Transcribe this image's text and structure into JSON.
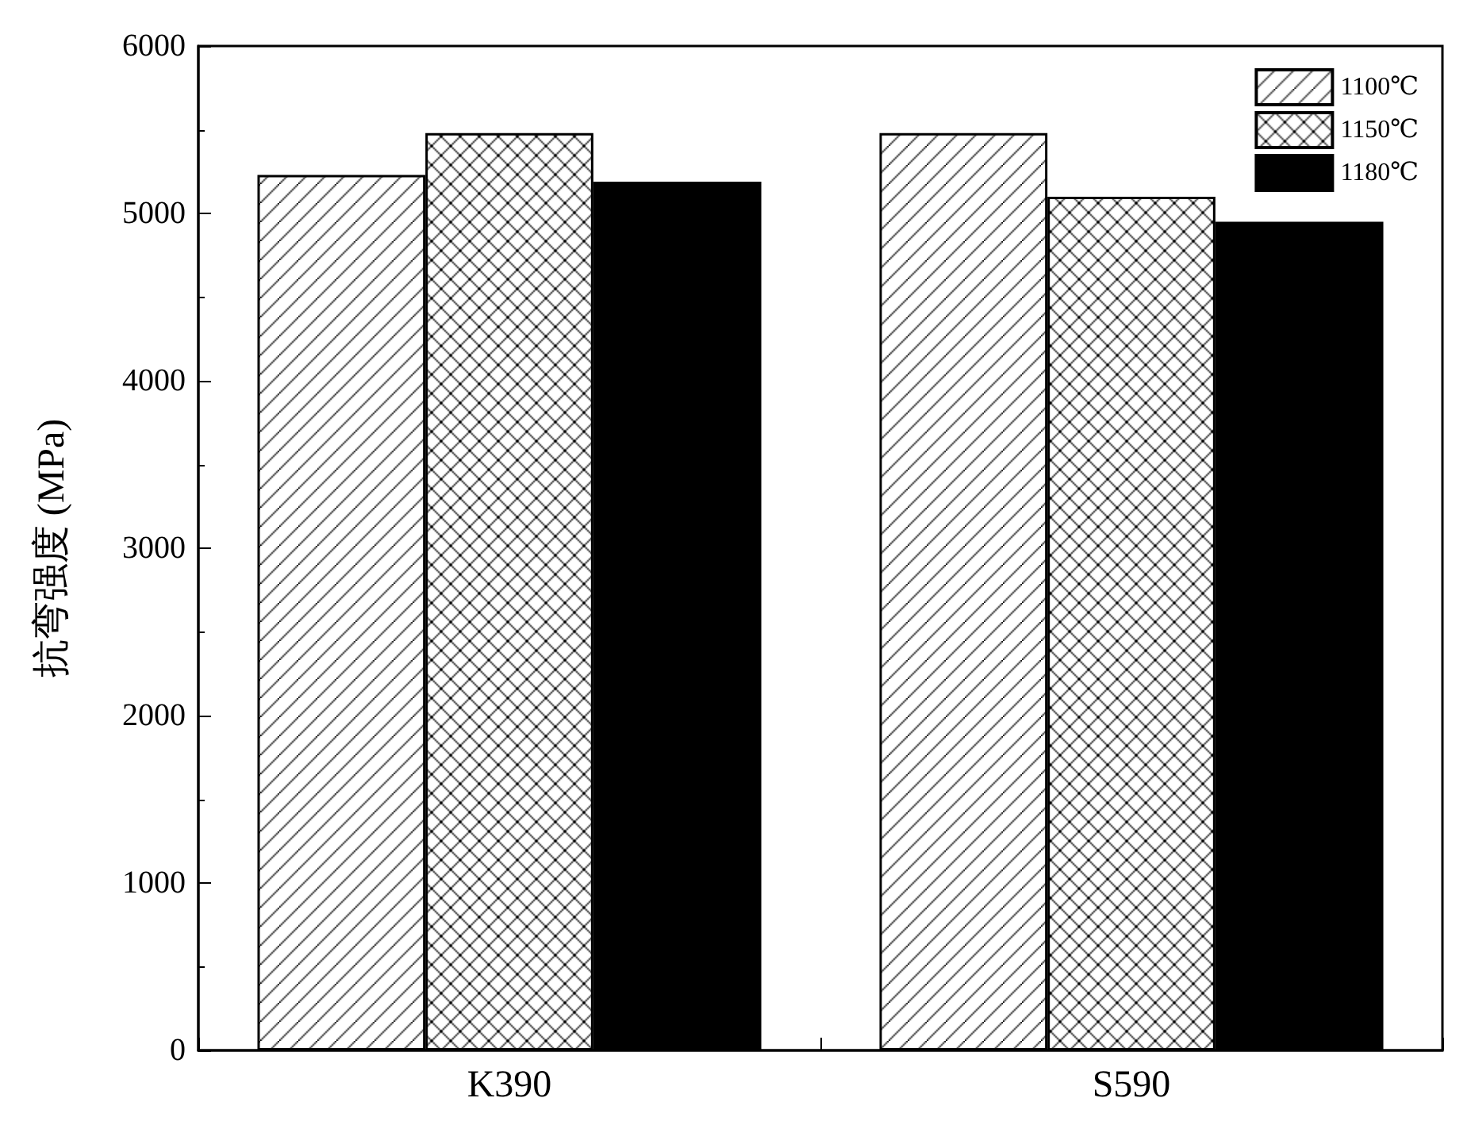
{
  "chart_data": {
    "type": "bar",
    "ylabel": "抗弯强度 (MPa)",
    "categories": [
      "K390",
      "S590"
    ],
    "series": [
      {
        "name": "1100℃",
        "color": "#000000",
        "values": [
          5230,
          5480
        ]
      },
      {
        "name": "1150℃",
        "color": "#000000",
        "values": [
          5480,
          5100
        ]
      },
      {
        "name": "1180℃",
        "color": "#000000",
        "values": [
          5190,
          4950
        ]
      }
    ],
    "ylim": [
      0,
      6000
    ],
    "yticks": [
      0,
      1000,
      2000,
      3000,
      4000,
      5000,
      6000
    ],
    "grid": false,
    "legend": "top right"
  }
}
